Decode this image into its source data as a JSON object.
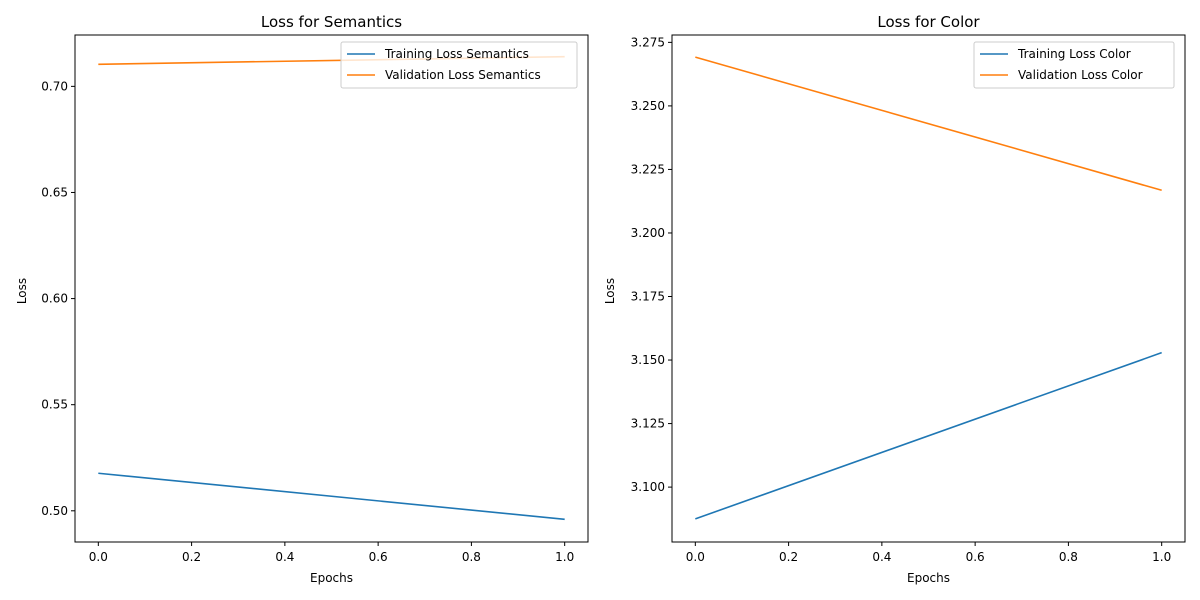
{
  "chart_data": [
    {
      "type": "line",
      "title": "Loss for Semantics",
      "xlabel": "Epochs",
      "ylabel": "Loss",
      "xlim": [
        -0.05,
        1.05
      ],
      "ylim": [
        0.4853,
        0.7242
      ],
      "xticks": [
        0.0,
        0.2,
        0.4,
        0.6,
        0.8,
        1.0
      ],
      "xtick_labels": [
        "0.0",
        "0.2",
        "0.4",
        "0.6",
        "0.8",
        "1.0"
      ],
      "yticks": [
        0.5,
        0.55,
        0.6,
        0.65,
        0.7
      ],
      "ytick_labels": [
        "0.50",
        "0.55",
        "0.60",
        "0.65",
        "0.70"
      ],
      "grid": false,
      "legend_position": "top-right",
      "series": [
        {
          "name": "Training Loss Semantics",
          "color": "#1f77b4",
          "x": [
            0,
            1
          ],
          "y": [
            0.5177,
            0.496
          ]
        },
        {
          "name": "Validation Loss Semantics",
          "color": "#ff7f0e",
          "x": [
            0,
            1
          ],
          "y": [
            0.7104,
            0.714
          ]
        }
      ]
    },
    {
      "type": "line",
      "title": "Loss for Color",
      "xlabel": "Epochs",
      "ylabel": "Loss",
      "xlim": [
        -0.05,
        1.05
      ],
      "ylim": [
        3.0784,
        3.2779
      ],
      "xticks": [
        0.0,
        0.2,
        0.4,
        0.6,
        0.8,
        1.0
      ],
      "xtick_labels": [
        "0.0",
        "0.2",
        "0.4",
        "0.6",
        "0.8",
        "1.0"
      ],
      "yticks": [
        3.1,
        3.125,
        3.15,
        3.175,
        3.2,
        3.225,
        3.25,
        3.275
      ],
      "ytick_labels": [
        "3.100",
        "3.125",
        "3.150",
        "3.175",
        "3.200",
        "3.225",
        "3.250",
        "3.275"
      ],
      "grid": false,
      "legend_position": "top-right",
      "series": [
        {
          "name": "Training Loss Color",
          "color": "#1f77b4",
          "x": [
            0,
            1
          ],
          "y": [
            3.0875,
            3.1529
          ]
        },
        {
          "name": "Validation Loss Color",
          "color": "#ff7f0e",
          "x": [
            0,
            1
          ],
          "y": [
            3.2692,
            3.2168
          ]
        }
      ]
    }
  ]
}
